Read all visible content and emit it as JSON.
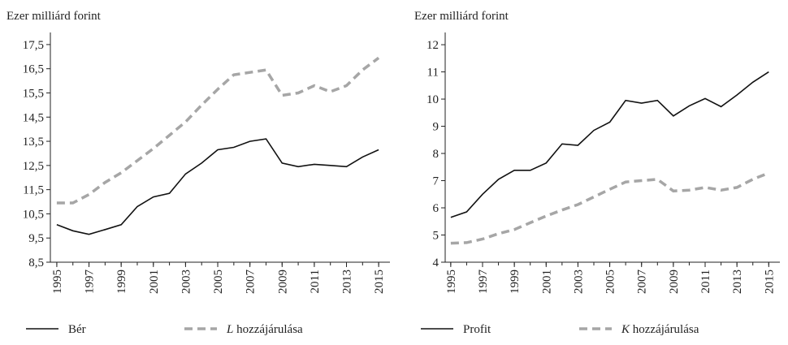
{
  "chart_data": [
    {
      "type": "line",
      "y_label": "Ezer milliárd forint",
      "x": [
        1995,
        1996,
        1997,
        1998,
        1999,
        2000,
        2001,
        2002,
        2003,
        2004,
        2005,
        2006,
        2007,
        2008,
        2009,
        2010,
        2011,
        2012,
        2013,
        2014,
        2015
      ],
      "xlim": [
        1994.6,
        2015.7
      ],
      "xticks": [
        1995,
        1997,
        1999,
        2001,
        2003,
        2005,
        2007,
        2009,
        2011,
        2013,
        2015
      ],
      "ylim": [
        8.5,
        18.0
      ],
      "yticks": [
        {
          "value": 8.5,
          "label": "8,5"
        },
        {
          "value": 9.5,
          "label": "9,5"
        },
        {
          "value": 10.5,
          "label": "10,5"
        },
        {
          "value": 11.5,
          "label": "11,5"
        },
        {
          "value": 12.5,
          "label": "12,5"
        },
        {
          "value": 13.5,
          "label": "13,5"
        },
        {
          "value": 14.5,
          "label": "14,5"
        },
        {
          "value": 15.5,
          "label": "15,5"
        },
        {
          "value": 16.5,
          "label": "16,5"
        },
        {
          "value": 17.5,
          "label": "17,5"
        }
      ],
      "series": [
        {
          "name": "Bér",
          "color": "#111111",
          "dashed": false,
          "values": [
            10.05,
            9.8,
            9.65,
            9.85,
            10.05,
            10.8,
            11.2,
            11.35,
            12.15,
            12.6,
            13.15,
            13.25,
            13.5,
            13.6,
            12.6,
            12.45,
            12.55,
            12.5,
            12.45,
            12.85,
            13.15
          ]
        },
        {
          "name": "L hozzájárulása",
          "color": "#a6a6a6",
          "dashed": true,
          "values": [
            10.95,
            10.95,
            11.3,
            11.8,
            12.2,
            12.7,
            13.2,
            13.75,
            14.3,
            15.0,
            15.65,
            16.25,
            16.35,
            16.45,
            15.4,
            15.5,
            15.8,
            15.55,
            15.8,
            16.45,
            16.95
          ]
        }
      ]
    },
    {
      "type": "line",
      "y_label": "Ezer milliárd forint",
      "x": [
        1995,
        1996,
        1997,
        1998,
        1999,
        2000,
        2001,
        2002,
        2003,
        2004,
        2005,
        2006,
        2007,
        2008,
        2009,
        2010,
        2011,
        2012,
        2013,
        2014,
        2015
      ],
      "xlim": [
        1994.65,
        2015.7
      ],
      "xticks": [
        1995,
        1997,
        1999,
        2001,
        2003,
        2005,
        2007,
        2009,
        2011,
        2013,
        2015
      ],
      "ylim": [
        4,
        12.45
      ],
      "yticks": [
        4,
        5,
        6,
        7,
        8,
        9,
        10,
        11,
        12
      ],
      "series": [
        {
          "name": "Profit",
          "color": "#111111",
          "dashed": false,
          "values": [
            5.65,
            5.85,
            6.5,
            7.05,
            7.38,
            7.38,
            7.65,
            8.35,
            8.3,
            8.85,
            9.15,
            9.95,
            9.85,
            9.95,
            9.38,
            9.75,
            10.02,
            9.72,
            10.15,
            10.62,
            11.0
          ]
        },
        {
          "name": "K hozzájárulása",
          "color": "#a6a6a6",
          "dashed": true,
          "values": [
            4.7,
            4.72,
            4.85,
            5.05,
            5.2,
            5.45,
            5.7,
            5.92,
            6.12,
            6.4,
            6.68,
            6.95,
            7.0,
            7.05,
            6.62,
            6.65,
            6.75,
            6.65,
            6.75,
            7.05,
            7.28
          ]
        }
      ]
    }
  ]
}
